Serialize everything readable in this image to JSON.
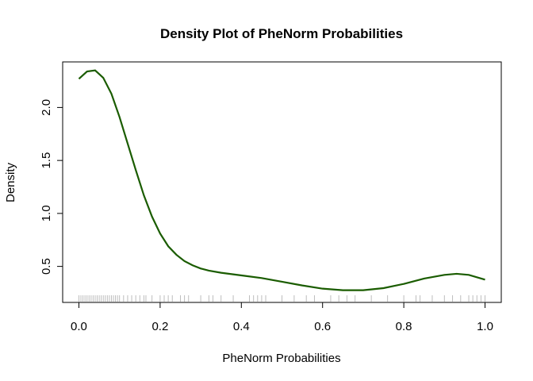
{
  "chart_data": {
    "type": "line",
    "title": "Density Plot of PheNorm Probabilities",
    "xlabel": "PheNorm Probabilities",
    "ylabel": "Density",
    "xlim": [
      -0.04,
      1.04
    ],
    "ylim": [
      0.16,
      2.43
    ],
    "x_ticks": [
      {
        "value": 0.0,
        "label": "0.0"
      },
      {
        "value": 0.2,
        "label": "0.2"
      },
      {
        "value": 0.4,
        "label": "0.4"
      },
      {
        "value": 0.6,
        "label": "0.6"
      },
      {
        "value": 0.8,
        "label": "0.8"
      },
      {
        "value": 1.0,
        "label": "1.0"
      }
    ],
    "y_ticks": [
      {
        "value": 0.5,
        "label": "0.5"
      },
      {
        "value": 1.0,
        "label": "1.0"
      },
      {
        "value": 1.5,
        "label": "1.5"
      },
      {
        "value": 2.0,
        "label": "2.0"
      }
    ],
    "grid": false,
    "line_color": "#1a5c00",
    "rug_color": "#bdbdbd",
    "series": [
      {
        "x": [
          0.0,
          0.02,
          0.04,
          0.06,
          0.08,
          0.1,
          0.12,
          0.14,
          0.16,
          0.18,
          0.2,
          0.22,
          0.24,
          0.26,
          0.28,
          0.3,
          0.32,
          0.35,
          0.38,
          0.41,
          0.45,
          0.5,
          0.55,
          0.6,
          0.65,
          0.7,
          0.75,
          0.8,
          0.85,
          0.9,
          0.93,
          0.96,
          1.0
        ],
        "y": [
          2.27,
          2.34,
          2.35,
          2.28,
          2.13,
          1.91,
          1.66,
          1.41,
          1.17,
          0.97,
          0.81,
          0.69,
          0.61,
          0.55,
          0.51,
          0.48,
          0.46,
          0.44,
          0.425,
          0.41,
          0.39,
          0.355,
          0.32,
          0.29,
          0.275,
          0.275,
          0.295,
          0.335,
          0.385,
          0.42,
          0.43,
          0.42,
          0.375
        ]
      }
    ],
    "rug": [
      0.0,
      0.005,
      0.01,
      0.015,
      0.02,
      0.025,
      0.03,
      0.035,
      0.04,
      0.045,
      0.05,
      0.055,
      0.06,
      0.065,
      0.07,
      0.075,
      0.08,
      0.085,
      0.09,
      0.095,
      0.1,
      0.11,
      0.12,
      0.13,
      0.14,
      0.15,
      0.16,
      0.165,
      0.18,
      0.2,
      0.21,
      0.22,
      0.23,
      0.25,
      0.26,
      0.27,
      0.3,
      0.32,
      0.33,
      0.35,
      0.38,
      0.42,
      0.43,
      0.44,
      0.45,
      0.46,
      0.5,
      0.53,
      0.56,
      0.58,
      0.62,
      0.64,
      0.66,
      0.68,
      0.72,
      0.76,
      0.8,
      0.83,
      0.84,
      0.87,
      0.9,
      0.92,
      0.94,
      0.96,
      0.97,
      0.98,
      0.99,
      1.0
    ]
  }
}
